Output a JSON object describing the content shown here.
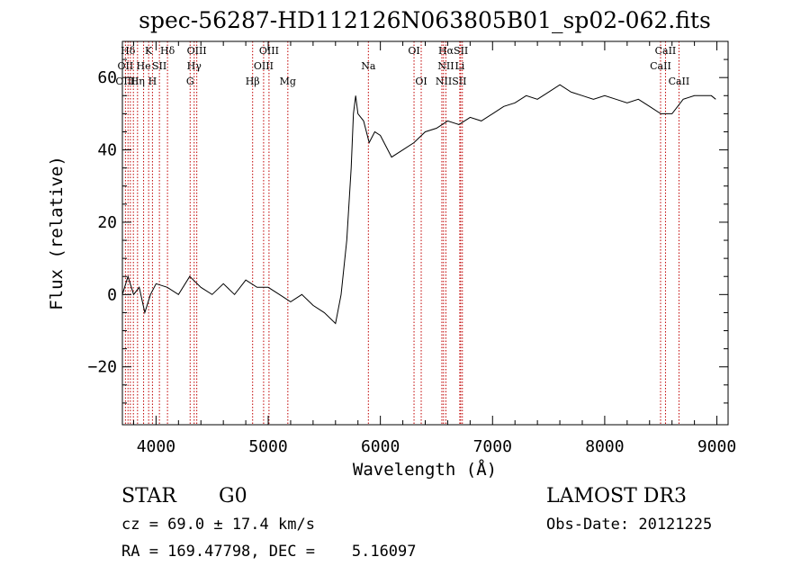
{
  "chart_data": {
    "type": "line",
    "title": "spec-56287-HD112126N063805B01_sp02-062.fits",
    "xlabel": "Wavelength (Å)",
    "ylabel": "Flux (relative)",
    "xlim": [
      3700,
      9100
    ],
    "ylim": [
      -36,
      70
    ],
    "x_ticks": [
      4000,
      5000,
      6000,
      7000,
      8000,
      9000
    ],
    "y_ticks": [
      -20,
      0,
      20,
      40,
      60
    ],
    "x_tick_labels": [
      "4000",
      "5000",
      "6000",
      "7000",
      "8000",
      "9000"
    ],
    "y_tick_labels": [
      "−20",
      "0",
      "20",
      "40",
      "60"
    ],
    "grid": false,
    "series": [
      {
        "color": "#000000",
        "x": [
          3700,
          3750,
          3800,
          3850,
          3900,
          3950,
          4000,
          4100,
          4200,
          4300,
          4400,
          4500,
          4600,
          4700,
          4800,
          4900,
          5000,
          5100,
          5200,
          5300,
          5400,
          5500,
          5600,
          5650,
          5700,
          5740,
          5760,
          5780,
          5800,
          5850,
          5900,
          5950,
          6000,
          6100,
          6200,
          6300,
          6400,
          6500,
          6600,
          6700,
          6800,
          6900,
          7000,
          7100,
          7200,
          7300,
          7400,
          7500,
          7600,
          7700,
          7800,
          7900,
          8000,
          8100,
          8200,
          8300,
          8400,
          8500,
          8600,
          8700,
          8800,
          8900,
          8950,
          8990
        ],
        "y": [
          0,
          5,
          0,
          2,
          -5,
          0,
          3,
          2,
          0,
          5,
          2,
          0,
          3,
          0,
          4,
          2,
          2,
          0,
          -2,
          0,
          -3,
          -5,
          -8,
          0,
          15,
          35,
          50,
          55,
          50,
          48,
          42,
          45,
          44,
          38,
          40,
          42,
          45,
          46,
          48,
          47,
          49,
          48,
          50,
          52,
          53,
          55,
          54,
          56,
          58,
          56,
          55,
          54,
          55,
          54,
          53,
          54,
          52,
          50,
          50,
          54,
          55,
          55,
          55,
          54
        ]
      }
    ],
    "line_markers": [
      {
        "label": "Hδ",
        "x": 3750,
        "row": 1
      },
      {
        "label": "K",
        "x": 3934,
        "row": 1
      },
      {
        "label": "Hδ",
        "x": 4102,
        "row": 1
      },
      {
        "label": "OIII",
        "x": 4363,
        "row": 1
      },
      {
        "label": "OIII",
        "x": 5007,
        "row": 1
      },
      {
        "label": "OI",
        "x": 6300,
        "row": 1
      },
      {
        "label": "HαSII",
        "x": 6650,
        "row": 1
      },
      {
        "label": "CaII",
        "x": 8542,
        "row": 1
      },
      {
        "label": "OII",
        "x": 3727,
        "row": 2
      },
      {
        "label": "He",
        "x": 3889,
        "row": 2
      },
      {
        "label": "SII",
        "x": 4030,
        "row": 2
      },
      {
        "label": "Hγ",
        "x": 4340,
        "row": 2
      },
      {
        "label": "OIII",
        "x": 4959,
        "row": 2
      },
      {
        "label": "Na",
        "x": 5893,
        "row": 2
      },
      {
        "label": "NII",
        "x": 6584,
        "row": 2
      },
      {
        "label": "Li",
        "x": 6708,
        "row": 2
      },
      {
        "label": "CaII",
        "x": 8498,
        "row": 2
      },
      {
        "label": "OIII",
        "x": 3727,
        "row": 3
      },
      {
        "label": "Hη",
        "x": 3835,
        "row": 3
      },
      {
        "label": "H",
        "x": 3968,
        "row": 3
      },
      {
        "label": "G",
        "x": 4304,
        "row": 3
      },
      {
        "label": "Hβ",
        "x": 4861,
        "row": 3
      },
      {
        "label": "Mg",
        "x": 5175,
        "row": 3
      },
      {
        "label": "OI",
        "x": 6364,
        "row": 3
      },
      {
        "label": "NIISII",
        "x": 6630,
        "row": 3
      },
      {
        "label": "CaII",
        "x": 8662,
        "row": 3
      }
    ],
    "marker_lines_x": [
      3727,
      3750,
      3771,
      3798,
      3835,
      3889,
      3934,
      3968,
      4030,
      4102,
      4304,
      4340,
      4363,
      4861,
      4959,
      5007,
      5175,
      5893,
      6300,
      6364,
      6548,
      6563,
      6584,
      6708,
      6716,
      6731,
      8498,
      8542,
      8662
    ]
  },
  "info": {
    "object_class": "STAR",
    "subclass": "G0",
    "survey": "LAMOST DR3",
    "cz": "cz = 69.0 ± 17.4 km/s",
    "obs_date": "Obs-Date: 20121225",
    "coords": "RA = 169.47798, DEC =    5.16097"
  }
}
